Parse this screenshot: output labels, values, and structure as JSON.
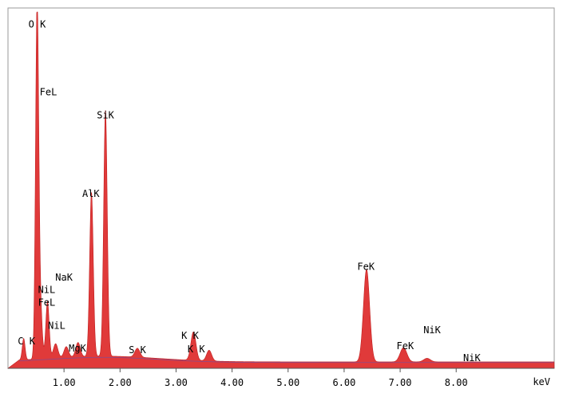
{
  "chart_data": {
    "type": "area",
    "title": "",
    "xlabel": "keV",
    "ylabel": "",
    "xlim": [
      0.0,
      9.75
    ],
    "ylim": [
      0,
      100
    ],
    "x_ticks": [
      {
        "value": 1.0,
        "label": "1.00"
      },
      {
        "value": 2.0,
        "label": "2.00"
      },
      {
        "value": 3.0,
        "label": "3.00"
      },
      {
        "value": 4.0,
        "label": "4.00"
      },
      {
        "value": 5.0,
        "label": "5.00"
      },
      {
        "value": 6.0,
        "label": "6.00"
      },
      {
        "value": 7.0,
        "label": "7.00"
      },
      {
        "value": 8.0,
        "label": "8.00"
      }
    ],
    "grid": false,
    "fill_color": "#e03a3a",
    "background_level": 2.2,
    "peaks": [
      {
        "x": 0.28,
        "y": 6,
        "w": 0.025
      },
      {
        "x": 0.52,
        "y": 100,
        "w": 0.028
      },
      {
        "x": 0.58,
        "y": 14,
        "w": 0.03
      },
      {
        "x": 0.705,
        "y": 16,
        "w": 0.03
      },
      {
        "x": 0.85,
        "y": 4,
        "w": 0.04
      },
      {
        "x": 1.04,
        "y": 3,
        "w": 0.04
      },
      {
        "x": 1.25,
        "y": 4,
        "w": 0.04
      },
      {
        "x": 1.49,
        "y": 46,
        "w": 0.032
      },
      {
        "x": 1.74,
        "y": 69,
        "w": 0.032
      },
      {
        "x": 2.31,
        "y": 2.5,
        "w": 0.045
      },
      {
        "x": 3.31,
        "y": 8,
        "w": 0.045
      },
      {
        "x": 3.59,
        "y": 3,
        "w": 0.045
      },
      {
        "x": 6.4,
        "y": 26,
        "w": 0.055
      },
      {
        "x": 7.06,
        "y": 4,
        "w": 0.06
      },
      {
        "x": 7.48,
        "y": 1,
        "w": 0.06
      }
    ],
    "annotations": [
      {
        "text": "O K",
        "x": 0.52,
        "y": 96.5,
        "anchor": "middle"
      },
      {
        "text": "FeL",
        "x": 0.72,
        "y": 77.5,
        "anchor": "middle"
      },
      {
        "text": "SiK",
        "x": 1.74,
        "y": 71,
        "anchor": "middle"
      },
      {
        "text": "AlK",
        "x": 1.48,
        "y": 49,
        "anchor": "middle"
      },
      {
        "text": "NaK",
        "x": 1.0,
        "y": 25.5,
        "anchor": "middle"
      },
      {
        "text": "NiL",
        "x": 0.69,
        "y": 22,
        "anchor": "middle"
      },
      {
        "text": "FeL",
        "x": 0.69,
        "y": 18.5,
        "anchor": "middle"
      },
      {
        "text": "NiL",
        "x": 0.87,
        "y": 12,
        "anchor": "middle"
      },
      {
        "text": "C K",
        "x": 0.33,
        "y": 7.6,
        "anchor": "middle"
      },
      {
        "text": "MgK",
        "x": 1.24,
        "y": 5.6,
        "anchor": "middle"
      },
      {
        "text": "S K",
        "x": 2.31,
        "y": 5.2,
        "anchor": "middle"
      },
      {
        "text": "K K",
        "x": 3.25,
        "y": 9.2,
        "anchor": "middle"
      },
      {
        "text": "K K",
        "x": 3.36,
        "y": 5.4,
        "anchor": "middle"
      },
      {
        "text": "FeK",
        "x": 6.39,
        "y": 28.5,
        "anchor": "middle"
      },
      {
        "text": "NiK",
        "x": 7.57,
        "y": 10.7,
        "anchor": "middle"
      },
      {
        "text": "FeK",
        "x": 7.09,
        "y": 6.3,
        "anchor": "middle"
      },
      {
        "text": "NiK",
        "x": 8.28,
        "y": 2.9,
        "anchor": "middle"
      }
    ]
  }
}
